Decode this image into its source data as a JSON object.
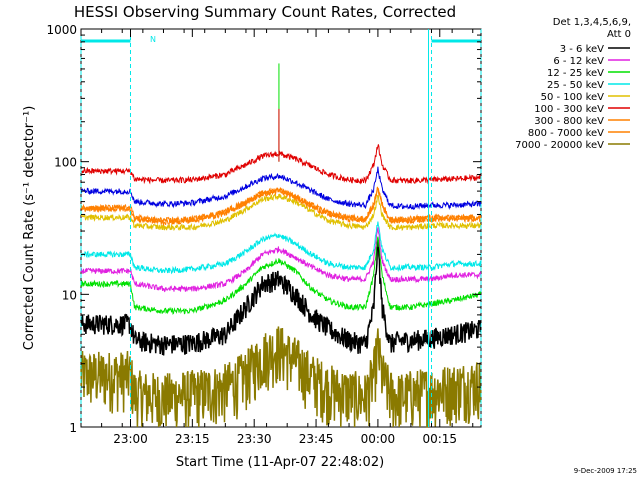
{
  "chart_data": {
    "type": "line",
    "title": "HESSI Observing Summary Count Rates, Corrected",
    "xlabel": "Start Time (11-Apr-07 22:48:02)",
    "ylabel": "Corrected Count Rate (s⁻¹ detector⁻¹)",
    "yscale": "log",
    "ylim": [
      1,
      1000
    ],
    "xlim_minutes_after_start": [
      0,
      97
    ],
    "x_tick_labels": [
      "23:00",
      "23:15",
      "23:30",
      "23:45",
      "00:00",
      "00:15"
    ],
    "x_tick_minutes_after_start": [
      12,
      27,
      42,
      57,
      72,
      87
    ],
    "y_tick_labels": [
      "1",
      "10",
      "100",
      "1000"
    ],
    "y_tick_values": [
      1,
      10,
      100,
      1000
    ],
    "legend_title": [
      "Det 1,3,4,5,6,9,",
      "Att 0"
    ],
    "legend_placement": "right",
    "footer_date": "9-Dec-2009 17:25",
    "night_marker_label": "N",
    "series": [
      {
        "name": "3 - 6 keV",
        "color": "#000000",
        "x": [
          0,
          12,
          13,
          20,
          27,
          35,
          40,
          44,
          48,
          52,
          56,
          60,
          65,
          69,
          71,
          72,
          73,
          75,
          77,
          80,
          85,
          90,
          97
        ],
        "y": [
          6,
          6,
          4.5,
          4.2,
          4.3,
          5,
          8,
          12,
          13,
          10,
          7,
          5.5,
          4.5,
          4.2,
          8,
          25,
          8,
          4.2,
          4.5,
          4.5,
          4.7,
          5,
          5.5
        ]
      },
      {
        "name": "6 - 12 keV",
        "color": "#e020e0",
        "x": [
          0,
          12,
          13,
          20,
          27,
          35,
          40,
          44,
          48,
          52,
          56,
          60,
          65,
          69,
          71,
          72,
          73,
          75,
          77,
          80,
          85,
          90,
          97
        ],
        "y": [
          15,
          15,
          12,
          11,
          11,
          12,
          15,
          20,
          22,
          19,
          16,
          14,
          13,
          13,
          18,
          32,
          18,
          13,
          13,
          13,
          13,
          14,
          14
        ]
      },
      {
        "name": "12 - 25 keV",
        "color": "#00e000",
        "x": [
          0,
          12,
          13,
          20,
          27,
          35,
          40,
          44,
          48,
          52,
          56,
          60,
          65,
          69,
          71,
          72,
          73,
          75,
          77,
          80,
          85,
          90,
          97
        ],
        "y": [
          12,
          12,
          8,
          7.5,
          7.5,
          9,
          12,
          16,
          18,
          15,
          11,
          9,
          8,
          8,
          14,
          28,
          14,
          8,
          8,
          8,
          8.5,
          9,
          10
        ]
      },
      {
        "name": "25 - 50 keV",
        "color": "#00e8e8",
        "x": [
          0,
          12,
          13,
          20,
          27,
          35,
          40,
          44,
          48,
          52,
          56,
          60,
          65,
          69,
          71,
          72,
          73,
          75,
          77,
          80,
          85,
          90,
          97
        ],
        "y": [
          20,
          20,
          16,
          15,
          15.5,
          17,
          21,
          26,
          28,
          24,
          20,
          17,
          16,
          16,
          22,
          36,
          22,
          16,
          16,
          16,
          16,
          17,
          17
        ]
      },
      {
        "name": "50 - 100 keV",
        "color": "#e0c000",
        "x": [
          0,
          12,
          13,
          20,
          27,
          35,
          40,
          44,
          48,
          52,
          56,
          60,
          65,
          69,
          71,
          72,
          73,
          75,
          77,
          80,
          85,
          90,
          97
        ],
        "y": [
          38,
          38,
          33,
          32,
          32,
          36,
          44,
          52,
          55,
          50,
          42,
          36,
          33,
          32,
          40,
          55,
          40,
          32,
          32,
          32,
          33,
          33,
          33
        ]
      },
      {
        "name": "100 - 300 keV",
        "color": "#e00000",
        "x": [
          0,
          12,
          13,
          20,
          27,
          35,
          40,
          44,
          48,
          52,
          56,
          60,
          65,
          69,
          71,
          72,
          73,
          75,
          77,
          80,
          85,
          90,
          97
        ],
        "y": [
          85,
          85,
          74,
          72,
          73,
          80,
          95,
          110,
          115,
          105,
          92,
          80,
          73,
          72,
          95,
          135,
          95,
          73,
          72,
          72,
          73,
          74,
          76
        ]
      },
      {
        "name": "300 - 800 keV",
        "color": "#ff8000",
        "x": [
          0,
          12,
          13,
          20,
          27,
          35,
          40,
          44,
          48,
          52,
          56,
          60,
          65,
          69,
          71,
          72,
          73,
          75,
          77,
          80,
          85,
          90,
          97
        ],
        "y": [
          45,
          45,
          38,
          36,
          37,
          42,
          50,
          58,
          62,
          55,
          47,
          41,
          38,
          37,
          48,
          65,
          48,
          37,
          37,
          37,
          38,
          38,
          38
        ]
      },
      {
        "name": "800 - 7000 keV",
        "color": "#ff8000",
        "x": [
          0,
          12,
          13,
          20,
          27,
          35,
          40,
          44,
          48,
          52,
          56,
          60,
          65,
          69,
          71,
          72,
          73,
          75,
          77,
          80,
          85,
          90,
          97
        ],
        "y": [
          44,
          44,
          37,
          35,
          36,
          41,
          49,
          57,
          60,
          54,
          46,
          40,
          37,
          36,
          47,
          63,
          47,
          36,
          36,
          36,
          37,
          37,
          37
        ]
      },
      {
        "name": "7000 - 20000 keV",
        "color": "#8a7a00",
        "x": [
          0,
          12,
          13,
          20,
          27,
          35,
          40,
          44,
          48,
          52,
          56,
          60,
          65,
          69,
          71,
          72,
          73,
          75,
          77,
          80,
          85,
          90,
          97
        ],
        "y": [
          2.5,
          2.5,
          1.8,
          1.7,
          1.8,
          2,
          2.5,
          3.5,
          4,
          3.2,
          2.4,
          2,
          1.8,
          1.7,
          2.5,
          4,
          2.5,
          1.8,
          1.7,
          1.8,
          1.9,
          2,
          2.2
        ]
      },
      {
        "name": "",
        "color": "#0000e0",
        "x": [
          0,
          12,
          13,
          20,
          27,
          35,
          40,
          44,
          48,
          52,
          56,
          60,
          65,
          69,
          71,
          72,
          73,
          75,
          77,
          80,
          85,
          90,
          97
        ],
        "y": [
          60,
          60,
          50,
          48,
          49,
          55,
          65,
          75,
          78,
          70,
          60,
          52,
          48,
          47,
          62,
          88,
          62,
          47,
          46,
          46,
          47,
          47,
          48
        ]
      }
    ],
    "spikes": [
      {
        "color": "#00e000",
        "x": 48,
        "y": 550
      },
      {
        "color": "#e00000",
        "x": 48,
        "y": 250
      }
    ],
    "night_intervals": [
      [
        0,
        12
      ],
      [
        85,
        97
      ]
    ],
    "saa_lines": [
      85
    ]
  }
}
